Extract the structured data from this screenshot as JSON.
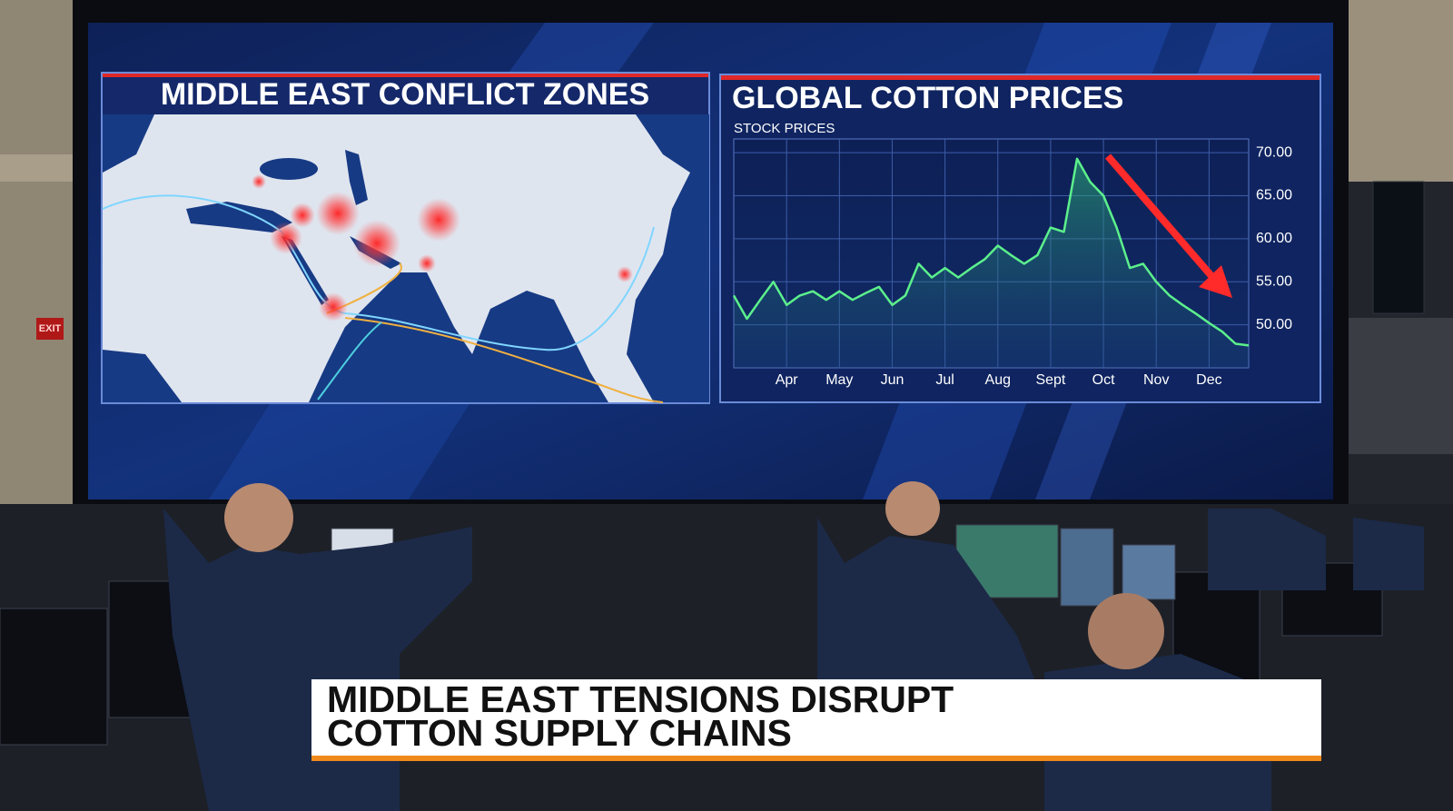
{
  "map_panel": {
    "title": "MIDDLE EAST CONFLICT ZONES"
  },
  "chart_data": {
    "type": "line",
    "title": "GLOBAL COTTON PRICES",
    "subtitle": "STOCK PRICES",
    "categories": [
      null,
      null,
      null,
      null,
      "Apr",
      null,
      null,
      null,
      "May",
      null,
      null,
      null,
      "Jun",
      null,
      null,
      null,
      "Jul",
      null,
      null,
      null,
      "Aug",
      null,
      null,
      null,
      "Sept",
      null,
      null,
      null,
      "Oct",
      null,
      null,
      null,
      "Nov",
      null,
      null,
      null,
      "Dec",
      null,
      null,
      null
    ],
    "values": [
      53.4,
      50.7,
      52.9,
      55.0,
      52.3,
      53.4,
      53.9,
      52.9,
      53.9,
      52.9,
      53.7,
      54.4,
      52.3,
      53.4,
      57.1,
      55.5,
      56.6,
      55.5,
      56.6,
      57.6,
      59.2,
      58.1,
      57.1,
      58.1,
      61.3,
      60.8,
      69.3,
      66.6,
      65.0,
      61.3,
      56.6,
      57.1,
      55.0,
      53.4,
      52.3,
      51.3,
      50.2,
      49.2,
      47.8,
      47.6
    ],
    "color": "#5cf08c",
    "ylim": [
      45,
      71.6
    ],
    "yticks": [
      {
        "value": 50,
        "label": "50.00"
      },
      {
        "value": 55,
        "label": "55.00"
      },
      {
        "value": 60,
        "label": "60.00"
      },
      {
        "value": 65,
        "label": "65.00"
      },
      {
        "value": 70,
        "label": "70.00"
      }
    ],
    "grid": true
  },
  "wall": {
    "exit_sign": "EXIT"
  },
  "headline": {
    "lines": [
      "MIDDLE EAST TENSIONS DISRUPT",
      "COTTON SUPPLY CHAINS"
    ]
  }
}
